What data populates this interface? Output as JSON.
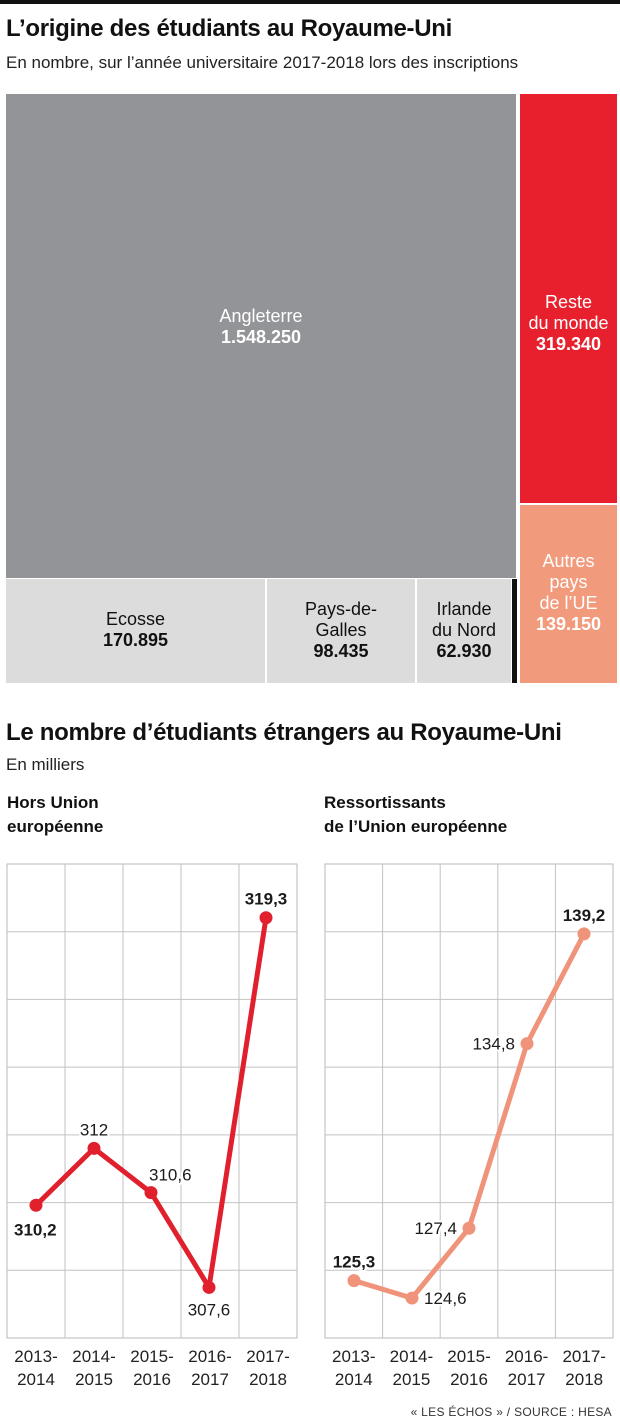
{
  "chart_data": [
    {
      "type": "treemap",
      "title": "L’origine des étudiants au Royaume-Uni",
      "subtitle": "En nombre, sur l’année universitaire 2017-2018 lors des inscriptions",
      "cells": [
        {
          "name": "Angleterre",
          "value_label": "1.548.250",
          "value": 1548250,
          "color": "#939498",
          "text_color": "#ffffff"
        },
        {
          "name": "Ecosse",
          "value_label": "170.895",
          "value": 170895,
          "color": "#dcdcdd",
          "text_color": "#111111"
        },
        {
          "name": "Pays-de-\nGalles",
          "value_label": "98.435",
          "value": 98435,
          "color": "#dcdcdd",
          "text_color": "#111111"
        },
        {
          "name": "Irlande\ndu Nord",
          "value_label": "62.930",
          "value": 62930,
          "color": "#dcdcdd",
          "text_color": "#111111"
        },
        {
          "name": "Reste\ndu monde",
          "value_label": "319.340",
          "value": 319340,
          "color": "#e8202d",
          "text_color": "#ffffff"
        },
        {
          "name": "Autres\npays\nde l’UE",
          "value_label": "139.150",
          "value": 139150,
          "color": "#f29a7c",
          "text_color": "#ffffff"
        }
      ]
    },
    {
      "type": "line",
      "title": "Le nombre d’étudiants étrangers au Royaume-Uni",
      "subtitle": "En milliers",
      "panels": [
        {
          "title": "Hors Union\neuropéenne",
          "color": "#e0202c",
          "categories": [
            "2013-\n2014",
            "2014-\n2015",
            "2015-\n2016",
            "2016-\n2017",
            "2017-\n2018"
          ],
          "values": [
            310.2,
            312,
            310.6,
            307.6,
            319.3
          ],
          "labels": [
            "310,2",
            "312",
            "310,6",
            "307,6",
            "319,3"
          ],
          "bold_labels": [
            true,
            false,
            false,
            false,
            true
          ],
          "ylim": [
            306,
            321
          ]
        },
        {
          "title": "Ressortissants\nde l’Union européenne",
          "color": "#f0937b",
          "categories": [
            "2013-\n2014",
            "2014-\n2015",
            "2015-\n2016",
            "2016-\n2017",
            "2017-\n2018"
          ],
          "values": [
            125.3,
            124.6,
            127.4,
            134.8,
            139.2
          ],
          "labels": [
            "125,3",
            "124,6",
            "127,4",
            "134,8",
            "139,2"
          ],
          "bold_labels": [
            true,
            false,
            false,
            false,
            true
          ],
          "ylim": [
            123,
            142
          ]
        }
      ]
    }
  ],
  "source": "« LES ÉCHOS » / SOURCE : HESA"
}
